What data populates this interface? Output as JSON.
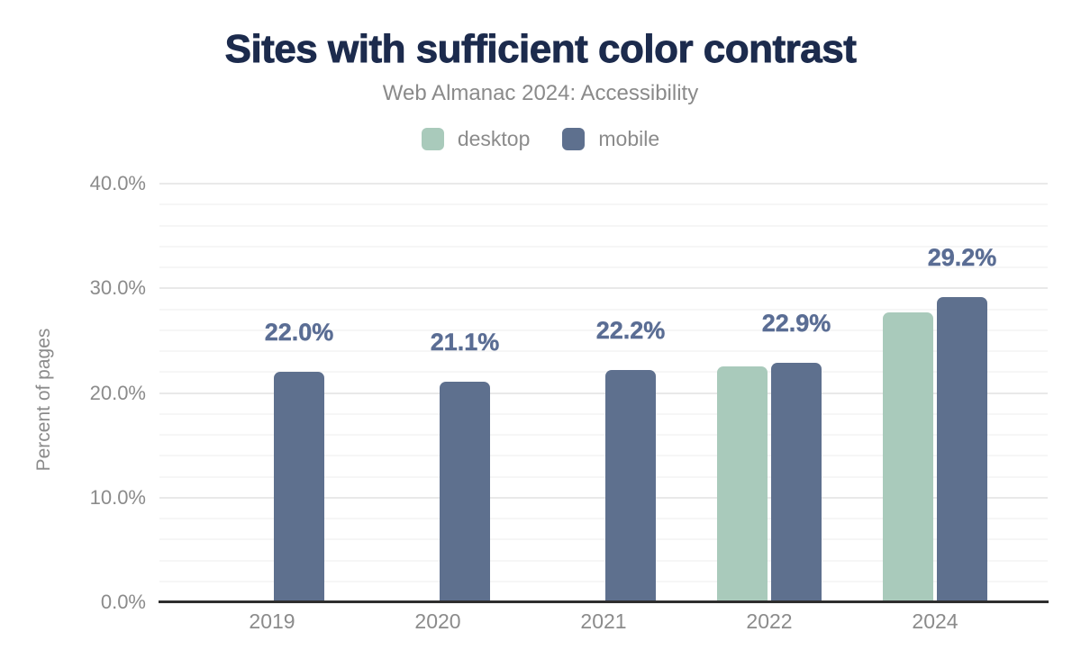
{
  "chart_data": {
    "type": "bar",
    "title": "Sites with sufficient color contrast",
    "subtitle": "Web Almanac 2024: Accessibility",
    "categories": [
      "2019",
      "2020",
      "2021",
      "2022",
      "2024"
    ],
    "series": [
      {
        "name": "desktop",
        "color": "#a9cabb",
        "values": [
          null,
          null,
          null,
          22.5,
          27.7
        ]
      },
      {
        "name": "mobile",
        "color": "#5e708e",
        "values": [
          22.0,
          21.1,
          22.2,
          22.9,
          29.2
        ],
        "labels": [
          "22.0%",
          "21.1%",
          "22.2%",
          "22.9%",
          "29.2%"
        ]
      }
    ],
    "value_labels_series": "mobile",
    "xlabel": "",
    "ylabel": "Percent of pages",
    "ylim": [
      0,
      40
    ],
    "y_ticks": [
      {
        "value": 0,
        "label": "0.0%"
      },
      {
        "value": 10,
        "label": "10.0%"
      },
      {
        "value": 20,
        "label": "20.0%"
      },
      {
        "value": 30,
        "label": "30.0%"
      },
      {
        "value": 40,
        "label": "40.0%"
      }
    ],
    "minor_grid_step": 2,
    "grid": "horizontal",
    "legend_position": "top"
  },
  "colors": {
    "title": "#1c2b4d",
    "subtitle": "#8a8a8a",
    "axis_text": "#8b8b8b",
    "value_label": "#5a6d94",
    "desktop_bar": "#a9cabb",
    "mobile_bar": "#5e708e",
    "axis_line": "#2e2e2e",
    "grid_major": "#e9e9e9",
    "grid_minor": "#f6f6f6",
    "background": "#ffffff"
  }
}
